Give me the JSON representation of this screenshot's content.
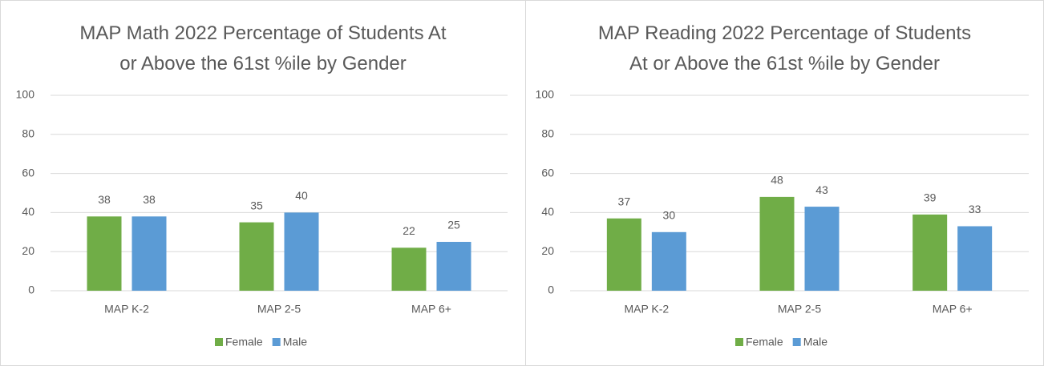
{
  "chart_data": [
    {
      "type": "bar",
      "title": "MAP Math 2022 Percentage of Students At or Above the 61st %ile by Gender",
      "categories": [
        "MAP K-2",
        "MAP 2-5",
        "MAP 6+"
      ],
      "series": [
        {
          "name": "Female",
          "color": "#70ad47",
          "values": [
            38,
            35,
            22
          ]
        },
        {
          "name": "Male",
          "color": "#5b9bd5",
          "values": [
            38,
            40,
            25
          ]
        }
      ],
      "ylim": [
        0,
        100
      ],
      "yticks": [
        0,
        20,
        40,
        60,
        80,
        100
      ],
      "grid": true,
      "legend": "bottom"
    },
    {
      "type": "bar",
      "title": "MAP Reading 2022 Percentage of Students At or Above the 61st %ile by Gender",
      "categories": [
        "MAP K-2",
        "MAP 2-5",
        "MAP 6+"
      ],
      "series": [
        {
          "name": "Female",
          "color": "#70ad47",
          "values": [
            37,
            48,
            39
          ]
        },
        {
          "name": "Male",
          "color": "#5b9bd5",
          "values": [
            30,
            43,
            33
          ]
        }
      ],
      "ylim": [
        0,
        100
      ],
      "yticks": [
        0,
        20,
        40,
        60,
        80,
        100
      ],
      "grid": true,
      "legend": "bottom"
    }
  ]
}
